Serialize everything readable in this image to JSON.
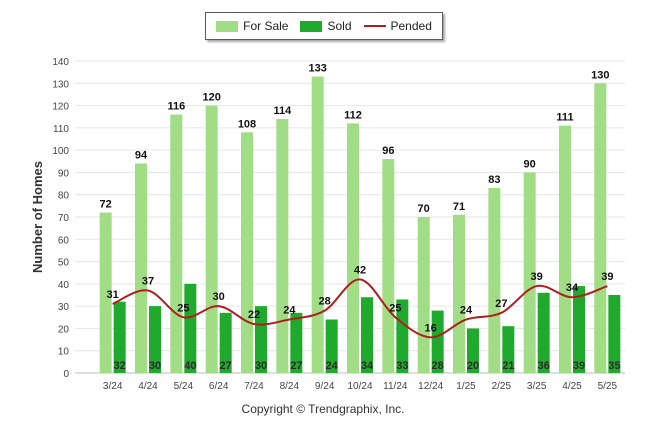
{
  "chart_data": {
    "type": "bar",
    "title": "",
    "ylabel": "Number of Homes",
    "xlabel": "",
    "ylim": [
      0,
      140
    ],
    "yticks": [
      0,
      10,
      20,
      30,
      40,
      50,
      60,
      70,
      80,
      90,
      100,
      110,
      120,
      130,
      140
    ],
    "grid": true,
    "legend_position": "top-center",
    "categories": [
      "3/24",
      "4/24",
      "5/24",
      "6/24",
      "7/24",
      "8/24",
      "9/24",
      "10/24",
      "11/24",
      "12/24",
      "1/25",
      "2/25",
      "3/25",
      "4/25",
      "5/25"
    ],
    "series": [
      {
        "name": "For Sale",
        "type": "bar",
        "color": "#a1dd85",
        "values": [
          72,
          94,
          116,
          120,
          108,
          114,
          133,
          112,
          96,
          70,
          71,
          83,
          90,
          111,
          130
        ]
      },
      {
        "name": "Sold",
        "type": "bar",
        "color": "#1faa2d",
        "values": [
          32,
          30,
          40,
          27,
          30,
          27,
          24,
          34,
          33,
          28,
          20,
          21,
          36,
          39,
          35
        ]
      },
      {
        "name": "Pended",
        "type": "line",
        "color": "#b01d1d",
        "values": [
          31,
          37,
          25,
          30,
          22,
          24,
          28,
          42,
          25,
          16,
          24,
          27,
          39,
          34,
          39
        ]
      }
    ]
  },
  "footer": {
    "copyright": "Copyright © Trendgraphix, Inc."
  }
}
